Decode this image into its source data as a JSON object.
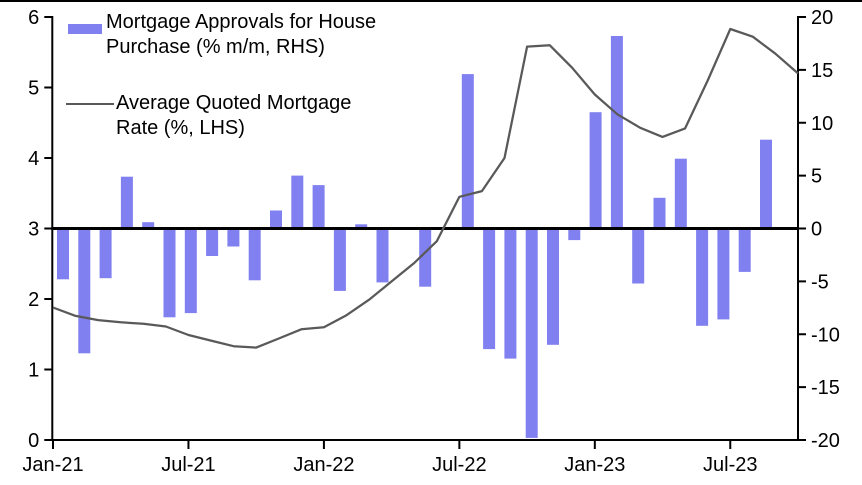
{
  "chart_data": {
    "type": "combo",
    "title": "",
    "categories": [
      "Jan-21",
      "Feb-21",
      "Mar-21",
      "Apr-21",
      "May-21",
      "Jun-21",
      "Jul-21",
      "Aug-21",
      "Sep-21",
      "Oct-21",
      "Nov-21",
      "Dec-21",
      "Jan-22",
      "Feb-22",
      "Mar-22",
      "Apr-22",
      "May-22",
      "Jun-22",
      "Jul-22",
      "Aug-22",
      "Sep-22",
      "Oct-22",
      "Nov-22",
      "Dec-22",
      "Jan-23",
      "Feb-23",
      "Mar-23",
      "Apr-23",
      "May-23",
      "Jun-23",
      "Jul-23",
      "Aug-23",
      "Sep-23",
      "Oct-23"
    ],
    "series": [
      {
        "name": "Mortgage Approvals for House Purchase (% m/m, RHS)",
        "type": "bar",
        "axis": "right",
        "values": [
          -4.8,
          -11.8,
          -4.7,
          4.9,
          0.6,
          -8.4,
          -8.0,
          -2.6,
          -1.7,
          -4.9,
          1.7,
          5.0,
          4.1,
          -5.9,
          0.4,
          -5.1,
          0.0,
          -5.5,
          0.0,
          14.6,
          -11.4,
          -12.3,
          -19.8,
          -11.0,
          -1.1,
          11.0,
          18.2,
          -5.2,
          2.9,
          6.6,
          -9.2,
          -8.6,
          -4.1,
          8.4
        ]
      },
      {
        "name": "Average Quoted Mortgage Rate (%, LHS)",
        "type": "line",
        "axis": "left",
        "values": [
          1.88,
          1.76,
          1.7,
          1.67,
          1.65,
          1.61,
          1.49,
          1.41,
          1.33,
          1.31,
          1.44,
          1.57,
          1.6,
          1.77,
          1.99,
          2.25,
          2.51,
          2.82,
          3.45,
          3.53,
          4.0,
          5.58,
          5.6,
          5.28,
          4.9,
          4.62,
          4.43,
          4.3,
          4.42,
          5.1,
          5.83,
          5.72,
          5.48,
          5.2
        ]
      }
    ],
    "legend": {
      "position": "top-left",
      "entries": [
        {
          "swatch": "bar-swatch",
          "lines": [
            "Mortgage Approvals for House",
            "Purchase (% m/m, RHS)"
          ]
        },
        {
          "swatch": "line-swatch",
          "lines": [
            "Average Quoted Mortgage",
            "Rate (%, LHS)"
          ]
        }
      ]
    },
    "axes": {
      "left": {
        "min": 0,
        "max": 6,
        "tick_labels": [
          "0",
          "1",
          "2",
          "3",
          "4",
          "5",
          "6"
        ]
      },
      "right": {
        "min": -20,
        "max": 20,
        "tick_labels": [
          "-20",
          "-15",
          "-10",
          "-5",
          "0",
          "5",
          "10",
          "15",
          "20"
        ]
      },
      "x": {
        "tick_labels": [
          "Jan-21",
          "Jul-21",
          "Jan-22",
          "Jul-22",
          "Jan-23",
          "Jul-23"
        ]
      }
    },
    "colors": {
      "bar": "#8080F0",
      "line": "#595959",
      "axis": "#000000",
      "zero_line": "#000000"
    },
    "grid": false
  }
}
